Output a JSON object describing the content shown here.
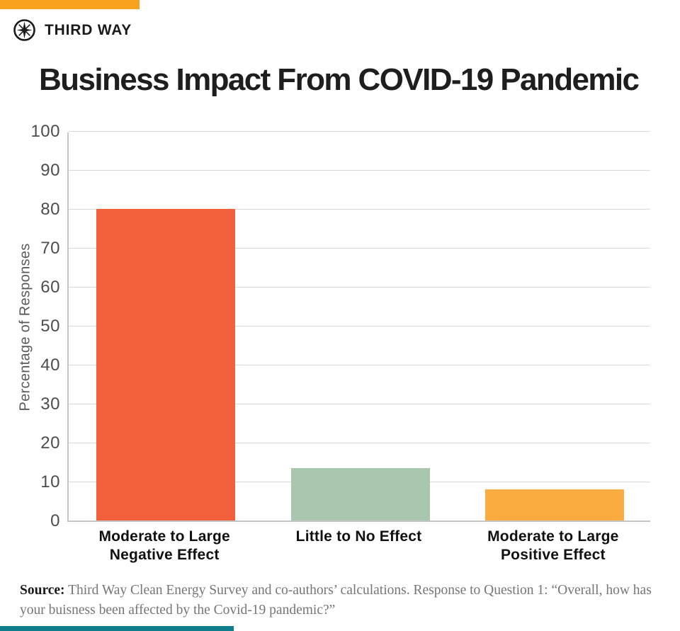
{
  "brand": {
    "name": "THIRD WAY",
    "logo_icon": "compass-star-icon",
    "top_bar_color": "#F9A21E",
    "bottom_bar_color": "#0E7D8C"
  },
  "title": "Business Impact From COVID-19 Pandemic",
  "chart_data": {
    "type": "bar",
    "categories": [
      "Moderate to Large\nNegative Effect",
      "Little to No Effect",
      "Moderate to Large\nPositive Effect"
    ],
    "values": [
      80,
      13.5,
      8
    ],
    "bar_colors": [
      "#F2603C",
      "#A9C7AF",
      "#FBAC40"
    ],
    "title": "Business Impact From COVID-19 Pandemic",
    "xlabel": "",
    "ylabel": "Percentage of Responses",
    "ylim": [
      0,
      100
    ],
    "ytick_step": 10,
    "grid": true,
    "legend": false,
    "grid_color": "#d9d9d9",
    "axis_color": "#c6c6c6",
    "tick_color": "#4d4d4d"
  },
  "source": {
    "label": "Source:",
    "text": " Third Way Clean Energy Survey and co-authors’ calculations. Response to Question 1: “Overall, how has your buisness been affected by the Covid-19 pandemic?”"
  }
}
